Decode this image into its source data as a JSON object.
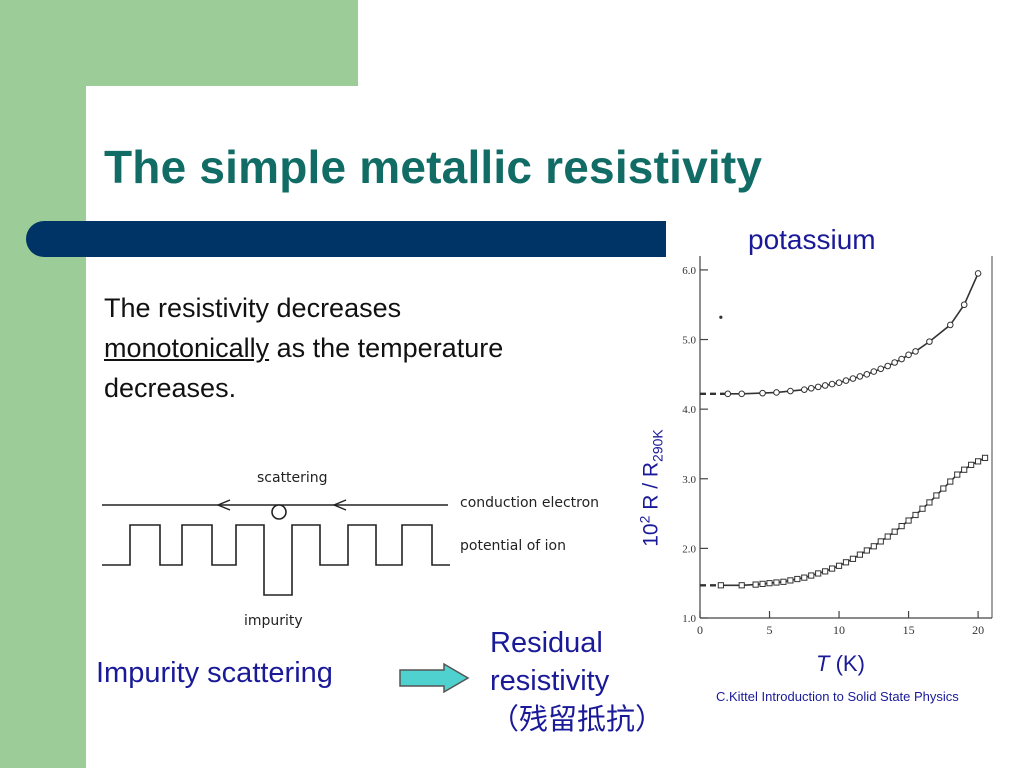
{
  "slide": {
    "title": "The simple metallic resistivity",
    "paragraph": {
      "part1": "The resistivity decreases ",
      "underlined": "monotonically",
      "part2": " as the temperature decreases."
    },
    "diagram_labels": {
      "scattering": "scattering",
      "conduction_electron": "conduction electron",
      "potential_of_ion": "potential of ion",
      "impurity": "impurity"
    },
    "impurity_scattering": "Impurity  scattering",
    "arrow_icon": "right-arrow-icon",
    "residual": {
      "line1": "Residual",
      "line2": "resistivity",
      "line3": "（残留抵抗）"
    },
    "credit": "C.Kittel Introduction to Solid State Physics",
    "colors": {
      "title": "#116c66",
      "accent_bar": "#003366",
      "green": "#9ccc98",
      "text_blue": "#1a1a99",
      "arrow_fill": "#4fd1cf"
    }
  },
  "chart_data": {
    "type": "scatter",
    "title": "potassium",
    "xlabel": {
      "italic": "T",
      "rest": " (K)"
    },
    "ylabel": {
      "pre": "10",
      "sup": "2",
      "mid": " R / R",
      "sub": "290K"
    },
    "xlim": [
      0,
      21
    ],
    "ylim": [
      1.0,
      6.2
    ],
    "x_ticks": [
      "0",
      "5",
      "10",
      "15",
      "20"
    ],
    "y_ticks": [
      "1.0",
      "2.0",
      "3.0",
      "4.0",
      "5.0",
      "6.0"
    ],
    "series": [
      {
        "marker": "circle",
        "residual": 4.22,
        "x": [
          2,
          3,
          4.5,
          5.5,
          6.5,
          7.5,
          8,
          8.5,
          9,
          9.5,
          10,
          10.5,
          11,
          11.5,
          12,
          12.5,
          13,
          13.5,
          14,
          14.5,
          15,
          15.5,
          16.5,
          18,
          19,
          20
        ],
        "y": [
          4.22,
          4.22,
          4.23,
          4.24,
          4.26,
          4.28,
          4.3,
          4.32,
          4.34,
          4.36,
          4.38,
          4.41,
          4.44,
          4.47,
          4.5,
          4.54,
          4.58,
          4.62,
          4.67,
          4.72,
          4.78,
          4.83,
          4.97,
          5.21,
          5.5,
          5.95
        ]
      },
      {
        "marker": "square",
        "residual": 1.47,
        "x": [
          1.5,
          3,
          4,
          4.5,
          5,
          5.5,
          6,
          6.5,
          7,
          7.5,
          8,
          8.5,
          9,
          9.5,
          10,
          10.5,
          11,
          11.5,
          12,
          12.5,
          13,
          13.5,
          14,
          14.5,
          15,
          15.5,
          16,
          16.5,
          17,
          17.5,
          18,
          18.5,
          19,
          19.5,
          20,
          20.5
        ],
        "y": [
          1.47,
          1.47,
          1.48,
          1.49,
          1.5,
          1.51,
          1.52,
          1.54,
          1.56,
          1.58,
          1.61,
          1.64,
          1.67,
          1.71,
          1.75,
          1.8,
          1.85,
          1.91,
          1.97,
          2.03,
          2.1,
          2.17,
          2.24,
          2.32,
          2.4,
          2.48,
          2.57,
          2.66,
          2.76,
          2.86,
          2.96,
          3.06,
          3.13,
          3.2,
          3.25,
          3.3
        ]
      },
      {
        "marker": "dot",
        "x": [
          1.5
        ],
        "y": [
          5.32
        ]
      }
    ]
  }
}
